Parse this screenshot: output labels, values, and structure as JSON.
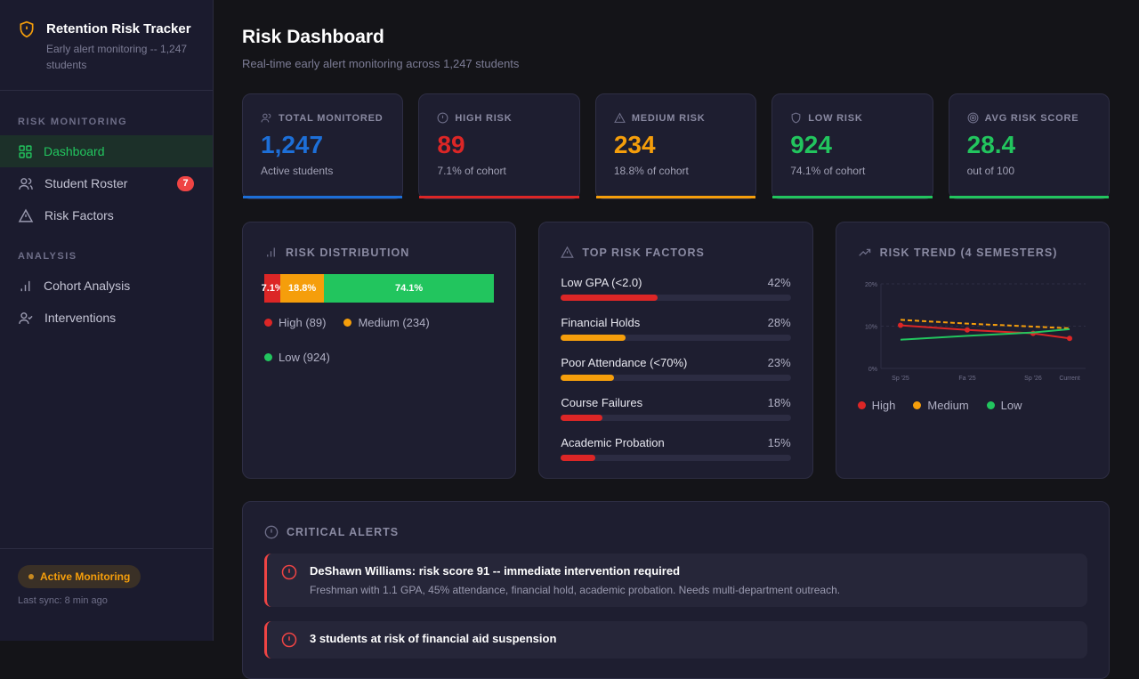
{
  "app": {
    "title": "Retention Risk Tracker",
    "subtitle": "Early alert monitoring -- 1,247 students"
  },
  "sidebar": {
    "sections": [
      {
        "label": "RISK MONITORING",
        "items": [
          {
            "label": "Dashboard",
            "icon": "grid-icon",
            "active": true
          },
          {
            "label": "Student Roster",
            "icon": "users-icon",
            "badge": "7"
          },
          {
            "label": "Risk Factors",
            "icon": "warning-icon"
          }
        ]
      },
      {
        "label": "ANALYSIS",
        "items": [
          {
            "label": "Cohort Analysis",
            "icon": "bar-chart-icon"
          },
          {
            "label": "Interventions",
            "icon": "user-check-icon"
          }
        ]
      }
    ],
    "status": "Active Monitoring",
    "sync": "Last sync: 8 min ago"
  },
  "header": {
    "title": "Risk Dashboard",
    "subtitle": "Real-time early alert monitoring across 1,247 students"
  },
  "stats": [
    {
      "label": "TOTAL MONITORED",
      "value": "1,247",
      "note": "Active students",
      "color": "#1d6fd8",
      "icon": "users-icon"
    },
    {
      "label": "HIGH RISK",
      "value": "89",
      "note": "7.1% of cohort",
      "color": "#dc2626",
      "icon": "alert-circle-icon"
    },
    {
      "label": "MEDIUM RISK",
      "value": "234",
      "note": "18.8% of cohort",
      "color": "#f59e0b",
      "icon": "warning-icon"
    },
    {
      "label": "LOW RISK",
      "value": "924",
      "note": "74.1% of cohort",
      "color": "#22c55e",
      "icon": "shield-icon"
    },
    {
      "label": "AVG RISK SCORE",
      "value": "28.4",
      "note": "out of 100",
      "color": "#22c55e",
      "icon": "target-icon"
    }
  ],
  "distribution": {
    "title": "RISK DISTRIBUTION",
    "segments": [
      {
        "label": "7.1%",
        "pct": 7.1,
        "color": "#dc2626",
        "legend": "High (89)"
      },
      {
        "label": "18.8%",
        "pct": 18.8,
        "color": "#f59e0b",
        "legend": "Medium (234)"
      },
      {
        "label": "74.1%",
        "pct": 74.1,
        "color": "#22c55e",
        "legend": "Low (924)"
      }
    ]
  },
  "factors": {
    "title": "TOP RISK FACTORS",
    "items": [
      {
        "label": "Low GPA (<2.0)",
        "pct": 42,
        "value": "42%",
        "color": "#dc2626"
      },
      {
        "label": "Financial Holds",
        "pct": 28,
        "value": "28%",
        "color": "#f59e0b"
      },
      {
        "label": "Poor Attendance (<70%)",
        "pct": 23,
        "value": "23%",
        "color": "#f59e0b"
      },
      {
        "label": "Course Failures",
        "pct": 18,
        "value": "18%",
        "color": "#dc2626"
      },
      {
        "label": "Academic Probation",
        "pct": 15,
        "value": "15%",
        "color": "#dc2626"
      }
    ]
  },
  "trend": {
    "title": "RISK TREND (4 SEMESTERS)"
  },
  "chart_data": {
    "type": "line",
    "categories": [
      "Sp '25",
      "Fa '25",
      "Sp '26",
      "Current"
    ],
    "ylim": [
      0,
      20
    ],
    "yticks": [
      "0%",
      "10%",
      "20%"
    ],
    "grid": true,
    "legend": "bottom",
    "series": [
      {
        "name": "High",
        "values": [
          10.2,
          9.1,
          8.3,
          7.1
        ],
        "color": "#dc2626"
      },
      {
        "name": "Medium",
        "values": [
          11.5,
          10.6,
          9.9,
          9.5
        ],
        "color": "#f59e0b",
        "dashed": true
      },
      {
        "name": "Low",
        "values": [
          6.8,
          7.7,
          8.5,
          9.3
        ],
        "color": "#22c55e"
      }
    ]
  },
  "alerts": {
    "title": "CRITICAL ALERTS",
    "items": [
      {
        "title": "DeShawn Williams: risk score 91 -- immediate intervention required",
        "desc": "Freshman with 1.1 GPA, 45% attendance, financial hold, academic probation. Needs multi-department outreach."
      },
      {
        "title": "3 students at risk of financial aid suspension",
        "desc": ""
      }
    ]
  }
}
